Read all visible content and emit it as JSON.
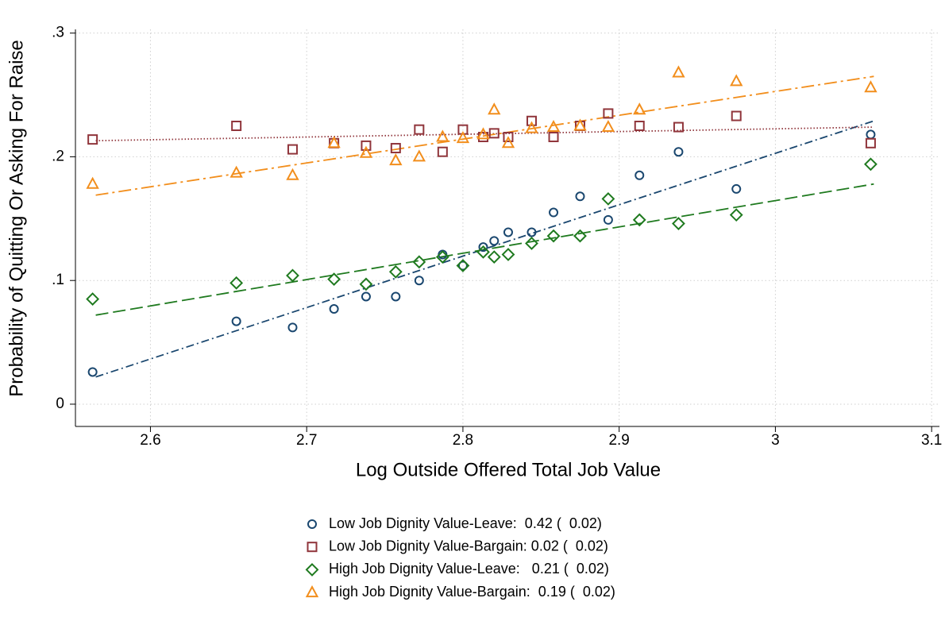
{
  "chart_data": {
    "type": "scatter",
    "x_label": "Log Outside Offered Total Job Value",
    "y_label": "Probability of Quitting Or Asking For Raise",
    "xlim": [
      2.552,
      3.105
    ],
    "ylim": [
      -0.018,
      0.303
    ],
    "xticks": [
      2.6,
      2.7,
      2.8,
      2.9,
      3,
      3.1
    ],
    "yticks": [
      0,
      {
        "value": 0.1,
        "label": ".1"
      },
      {
        "value": 0.2,
        "label": ".2"
      },
      {
        "value": 0.3,
        "label": ".3"
      }
    ],
    "grid": true,
    "x": [
      2.563,
      2.655,
      2.691,
      2.7175,
      2.738,
      2.757,
      2.772,
      2.787,
      2.8,
      2.813,
      2.82,
      2.829,
      2.844,
      2.858,
      2.875,
      2.893,
      2.913,
      2.938,
      2.975,
      3.061
    ],
    "fit_x": [
      2.565,
      3.063
    ],
    "series": [
      {
        "name": "Low Job Dignity Value-Leave:  0.42 (  0.02)",
        "color": "#1a476f",
        "marker": "circle",
        "line_style": "dashdot",
        "values": [
          0.026,
          0.067,
          0.062,
          0.077,
          0.087,
          0.087,
          0.1,
          0.121,
          0.112,
          0.127,
          0.132,
          0.139,
          0.139,
          0.155,
          0.168,
          0.149,
          0.185,
          0.204,
          0.174,
          0.218
        ],
        "fit": [
          0.022,
          0.229
        ]
      },
      {
        "name": "Low Job Dignity Value-Bargain: 0.02 (  0.02)",
        "color": "#90353b",
        "marker": "square",
        "line_style": "dotted",
        "values": [
          0.214,
          0.225,
          0.206,
          0.211,
          0.209,
          0.207,
          0.222,
          0.204,
          0.222,
          0.216,
          0.219,
          0.216,
          0.229,
          0.216,
          0.225,
          0.235,
          0.225,
          0.224,
          0.233,
          0.211
        ],
        "fit": [
          0.213,
          0.224
        ]
      },
      {
        "name": "High Job Dignity Value-Leave:   0.21 (  0.02)",
        "color": "#1f7a1f",
        "marker": "diamond",
        "line_style": "longdash",
        "values": [
          0.085,
          0.098,
          0.104,
          0.101,
          0.097,
          0.107,
          0.115,
          0.119,
          0.112,
          0.123,
          0.119,
          0.121,
          0.13,
          0.136,
          0.136,
          0.166,
          0.149,
          0.146,
          0.153,
          0.194
        ],
        "fit": [
          0.072,
          0.178
        ]
      },
      {
        "name": "High Job Dignity Value-Bargain:  0.19 (  0.02)",
        "color": "#f28e1c",
        "marker": "triangle",
        "line_style": "longdashdot",
        "values": [
          0.178,
          0.187,
          0.185,
          0.211,
          0.203,
          0.197,
          0.2,
          0.216,
          0.215,
          0.218,
          0.238,
          0.211,
          0.223,
          0.224,
          0.225,
          0.224,
          0.238,
          0.268,
          0.261,
          0.256
        ],
        "fit": [
          0.169,
          0.265
        ]
      }
    ]
  }
}
